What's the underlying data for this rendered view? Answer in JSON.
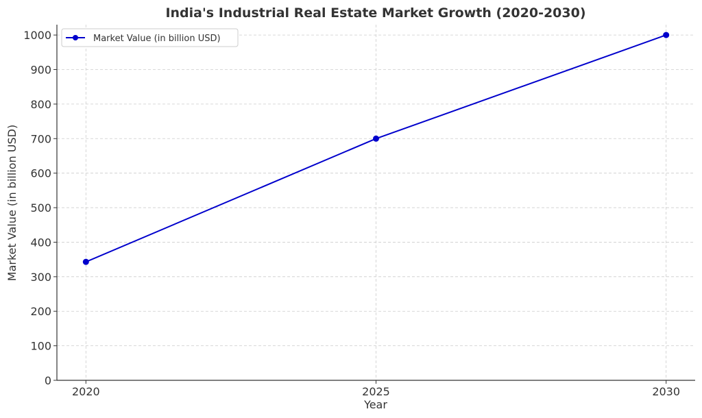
{
  "chart_data": {
    "type": "line",
    "title": "India's Industrial Real Estate Market Growth (2020-2030)",
    "xlabel": "Year",
    "ylabel": "Market Value (in billion USD)",
    "x": [
      2020,
      2025,
      2030
    ],
    "x_tick_labels": [
      "2020",
      "2025",
      "2030"
    ],
    "y_ticks": [
      0,
      100,
      200,
      300,
      400,
      500,
      600,
      700,
      800,
      900,
      1000
    ],
    "y_tick_labels": [
      "0",
      "100",
      "200",
      "300",
      "400",
      "500",
      "600",
      "700",
      "800",
      "900",
      "1000"
    ],
    "ylim": [
      0,
      1030
    ],
    "xlim": [
      2019.5,
      2030.5
    ],
    "grid": true,
    "legend_position": "top-left",
    "series": [
      {
        "name": "Market Value (in billion USD)",
        "values": [
          343,
          700,
          1000
        ],
        "color": "#0000cc",
        "marker": "circle"
      }
    ]
  }
}
